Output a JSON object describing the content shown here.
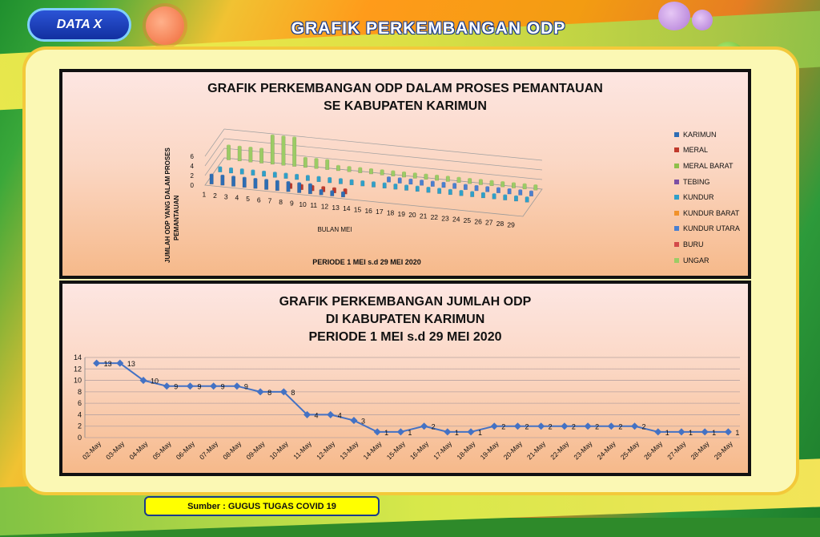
{
  "header": {
    "tag": "DATA X",
    "title": "GRAFIK PERKEMBANGAN  ODP"
  },
  "chart1": {
    "title_line1": "GRAFIK PERKEMBANGAN ODP DALAM PROSES PEMANTAUAN",
    "title_line2": "SE KABUPATEN KARIMUN",
    "ylabel_line1": "JUMLAH ODP YANG DALAM PROSES",
    "ylabel_line2": "PEMANTAUAN",
    "xlabel": "BULAN MEI",
    "period": "PERIODE 1 MEI s.d 29 MEI 2020"
  },
  "chart2": {
    "title_line1": "GRAFIK PERKEMBANGAN JUMLAH ODP",
    "title_line2": "DI KABUPATEN KARIMUN",
    "title_line3": "PERIODE 1 MEI s.d 29 MEI 2020"
  },
  "source": "Sumber :  GUGUS TUGAS COVID 19",
  "chart_data": [
    {
      "type": "bar",
      "title": "GRAFIK PERKEMBANGAN ODP DALAM PROSES PEMANTAUAN SE KABUPATEN KARIMUN",
      "xlabel": "BULAN MEI",
      "ylabel": "JUMLAH ODP YANG DALAM PROSES PEMANTAUAN",
      "ylim": [
        0,
        6
      ],
      "yticks": [
        0,
        2,
        4,
        6
      ],
      "categories": [
        "1",
        "2",
        "3",
        "4",
        "5",
        "6",
        "7",
        "8",
        "9",
        "10",
        "11",
        "12",
        "13",
        "14",
        "15",
        "16",
        "17",
        "18",
        "19",
        "20",
        "21",
        "22",
        "23",
        "24",
        "25",
        "26",
        "27",
        "28",
        "29"
      ],
      "legend_position": "right",
      "series": [
        {
          "name": "KARIMUN",
          "color": "#2e6db4",
          "values": [
            2,
            2,
            2,
            2,
            2,
            2,
            2,
            2,
            2,
            2,
            1,
            1,
            1,
            0,
            0,
            0,
            0,
            0,
            0,
            0,
            0,
            0,
            0,
            0,
            0,
            0,
            0,
            0,
            0
          ]
        },
        {
          "name": "MERAL",
          "color": "#c0392b",
          "values": [
            0,
            0,
            0,
            0,
            0,
            0,
            0,
            1,
            1,
            1,
            1,
            1,
            1,
            0,
            0,
            0,
            0,
            0,
            0,
            0,
            0,
            0,
            0,
            0,
            0,
            0,
            0,
            0,
            0
          ]
        },
        {
          "name": "MERAL BARAT",
          "color": "#8fbf4a",
          "values": [
            0,
            0,
            0,
            0,
            0,
            0,
            0,
            0,
            0,
            0,
            0,
            0,
            0,
            0,
            0,
            0,
            0,
            0,
            0,
            0,
            0,
            0,
            0,
            0,
            0,
            0,
            0,
            0,
            0
          ]
        },
        {
          "name": "TEBING",
          "color": "#7b4fa3",
          "values": [
            0,
            0,
            0,
            0,
            0,
            0,
            0,
            0,
            0,
            0,
            0,
            0,
            0,
            0,
            0,
            0,
            0,
            0,
            0,
            0,
            0,
            0,
            0,
            0,
            0,
            0,
            0,
            0,
            0
          ]
        },
        {
          "name": "KUNDUR",
          "color": "#2fa0c9",
          "values": [
            1,
            1,
            1,
            1,
            1,
            1,
            1,
            1,
            1,
            1,
            1,
            1,
            1,
            1,
            1,
            1,
            1,
            1,
            1,
            1,
            1,
            1,
            1,
            1,
            1,
            1,
            1,
            1,
            1
          ]
        },
        {
          "name": "KUNDUR BARAT",
          "color": "#f0922b",
          "values": [
            0,
            0,
            0,
            0,
            0,
            0,
            0,
            0,
            0,
            0,
            0,
            0,
            0,
            0,
            0,
            0,
            0,
            0,
            0,
            0,
            0,
            0,
            0,
            0,
            0,
            0,
            0,
            0,
            0
          ]
        },
        {
          "name": "KUNDUR UTARA",
          "color": "#4a7fd0",
          "values": [
            0,
            0,
            0,
            0,
            0,
            0,
            0,
            0,
            0,
            0,
            0,
            0,
            0,
            0,
            0,
            1,
            1,
            1,
            1,
            1,
            1,
            1,
            1,
            1,
            1,
            1,
            1,
            1,
            1
          ]
        },
        {
          "name": "BURU",
          "color": "#d34a4a",
          "values": [
            0,
            0,
            0,
            0,
            0,
            0,
            0,
            0,
            0,
            0,
            0,
            0,
            0,
            0,
            0,
            0,
            0,
            0,
            0,
            0,
            0,
            0,
            0,
            0,
            0,
            0,
            0,
            0,
            0
          ]
        },
        {
          "name": "UNGAR",
          "color": "#9ccc65",
          "values": [
            3,
            3,
            3,
            3,
            6,
            6,
            6,
            2,
            2,
            2,
            1,
            1,
            1,
            1,
            1,
            1,
            1,
            1,
            1,
            1,
            1,
            1,
            1,
            1,
            1,
            1,
            1,
            1,
            1
          ]
        }
      ]
    },
    {
      "type": "line",
      "title": "GRAFIK PERKEMBANGAN JUMLAH ODP DI KABUPATEN KARIMUN PERIODE 1 MEI s.d 29 MEI 2020",
      "ylim": [
        0,
        14
      ],
      "yticks": [
        0,
        2,
        4,
        6,
        8,
        10,
        12,
        14
      ],
      "grid": true,
      "color": "#4472c4",
      "categories": [
        "02-May",
        "03-May",
        "04-May",
        "05-May",
        "06-May",
        "07-May",
        "08-May",
        "09-May",
        "10-May",
        "11-May",
        "12-May",
        "13-May",
        "14-May",
        "15-May",
        "16-May",
        "17-May",
        "18-May",
        "19-May",
        "20-May",
        "21-May",
        "22-May",
        "23-May",
        "24-May",
        "25-May",
        "26-May",
        "27-May",
        "28-May",
        "29-May"
      ],
      "values": [
        13,
        13,
        10,
        9,
        9,
        9,
        9,
        8,
        8,
        4,
        4,
        3,
        1,
        1,
        2,
        1,
        1,
        2,
        2,
        2,
        2,
        2,
        2,
        2,
        1,
        1,
        1,
        1
      ]
    }
  ]
}
